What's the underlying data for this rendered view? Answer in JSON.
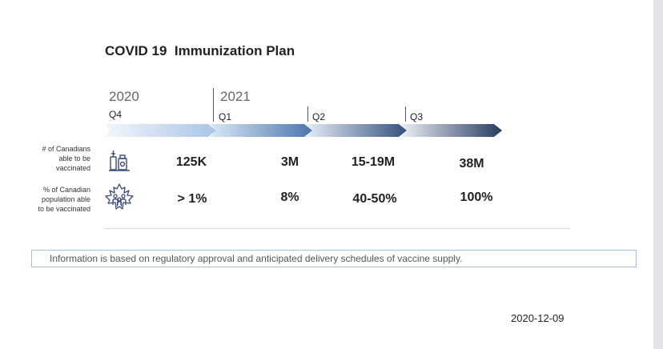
{
  "title": "COVID 19  Immunization Plan",
  "timeline": {
    "years": [
      "2020",
      "2021"
    ],
    "quarters": [
      "Q4",
      "Q1",
      "Q2",
      "Q3"
    ]
  },
  "rows": [
    {
      "label": "# of Canadians able to be vaccinated",
      "label_lines": [
        "# of Canadians",
        "able to be",
        "vaccinated"
      ],
      "icon": "vaccine-vials-icon",
      "values": [
        "125K",
        "3M",
        "15-19M",
        "38M"
      ]
    },
    {
      "label": "% of Canadian population able to be vaccinated",
      "label_lines": [
        "% of Canadian",
        "population able",
        "to be vaccinated"
      ],
      "icon": "canada-population-icon",
      "values": [
        "> 1%",
        "8%",
        "40-50%",
        "100%"
      ]
    }
  ],
  "info": "Information is based on regulatory approval and anticipated delivery schedules of vaccine supply.",
  "date": "2020-12-09",
  "colors": {
    "arrow_light": "#eaf1fa",
    "arrow_mid": "#4d79b0",
    "arrow_dark": "#2c3e63",
    "icon_stroke": "#3a4a78"
  }
}
